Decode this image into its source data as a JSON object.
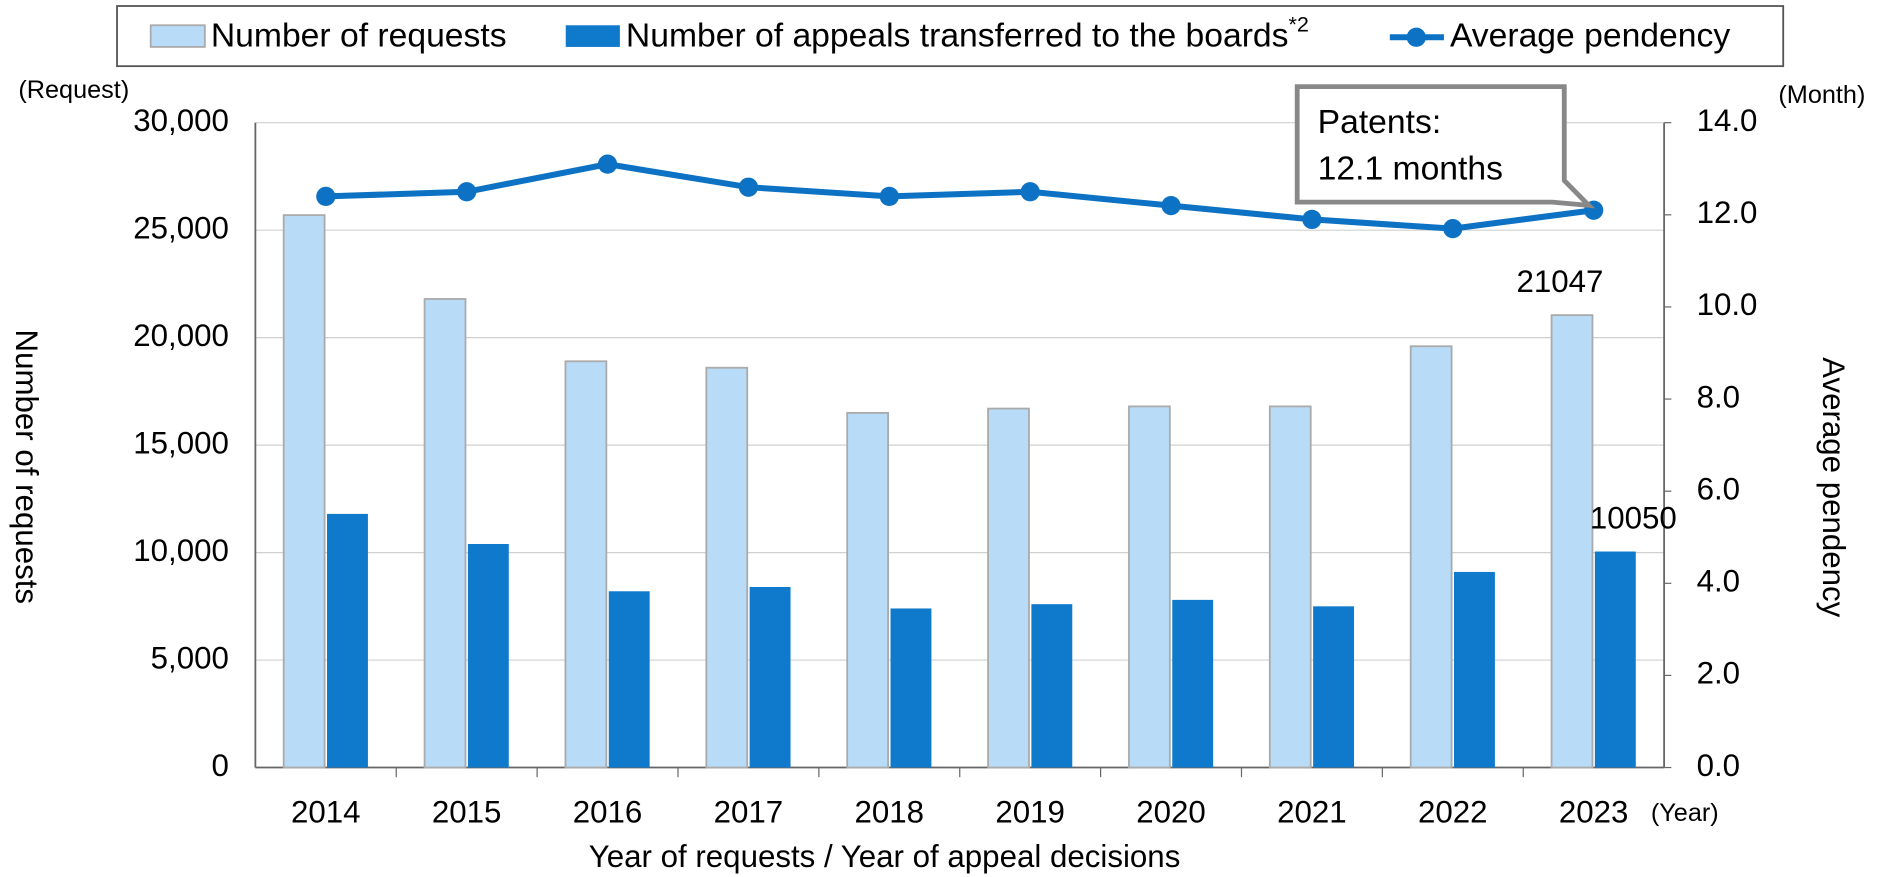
{
  "chart_data": {
    "type": "bar",
    "categories": [
      "2014",
      "2015",
      "2016",
      "2017",
      "2018",
      "2019",
      "2020",
      "2021",
      "2022",
      "2023"
    ],
    "series": [
      {
        "name": "Number of requests",
        "type": "bar",
        "color": "#b8dcf8",
        "values": [
          25700,
          21800,
          18900,
          18600,
          16500,
          16700,
          16800,
          16800,
          19600,
          21047
        ]
      },
      {
        "name": "Number of appeals transferred to the boards",
        "footnote": "*2",
        "type": "bar",
        "color": "#0f7acc",
        "values": [
          11800,
          10400,
          8200,
          8400,
          7400,
          7600,
          7800,
          7500,
          9100,
          10050
        ]
      },
      {
        "name": "Average pendency",
        "type": "line",
        "axis": "y2",
        "color": "#0d72c4",
        "values": [
          12.4,
          12.5,
          13.1,
          12.6,
          12.4,
          12.5,
          12.2,
          11.9,
          11.7,
          12.1
        ]
      }
    ],
    "ylim": [
      0,
      30000
    ],
    "yticks": [
      0,
      {
        "value": 5000,
        "label": "5,000"
      },
      {
        "value": 10000,
        "label": "10,000"
      },
      {
        "value": 15000,
        "label": "15,000"
      },
      {
        "value": 20000,
        "label": "20,000"
      },
      {
        "value": 25000,
        "label": "25,000"
      },
      {
        "value": 30000,
        "label": "30,000"
      }
    ],
    "y2lim": [
      0,
      14
    ],
    "y2ticks": [
      {
        "value": 0,
        "label": "0.0"
      },
      {
        "value": 2,
        "label": "2.0"
      },
      {
        "value": 4,
        "label": "4.0"
      },
      {
        "value": 6,
        "label": "6.0"
      },
      {
        "value": 8,
        "label": "8.0"
      },
      {
        "value": 10,
        "label": "10.0"
      },
      {
        "value": 12,
        "label": "12.0"
      },
      {
        "value": 14,
        "label": "14.0"
      }
    ],
    "y_unit": "(Request)",
    "y2_unit": "(Month)",
    "x_unit": "(Year)",
    "y_label": "Number of requests",
    "y2_label": "Average pendency",
    "x_label": "Year of requests / Year of appeal decisions",
    "annotation": [
      "Patents:",
      "12.1 months"
    ],
    "grid": true,
    "legend": "top"
  }
}
